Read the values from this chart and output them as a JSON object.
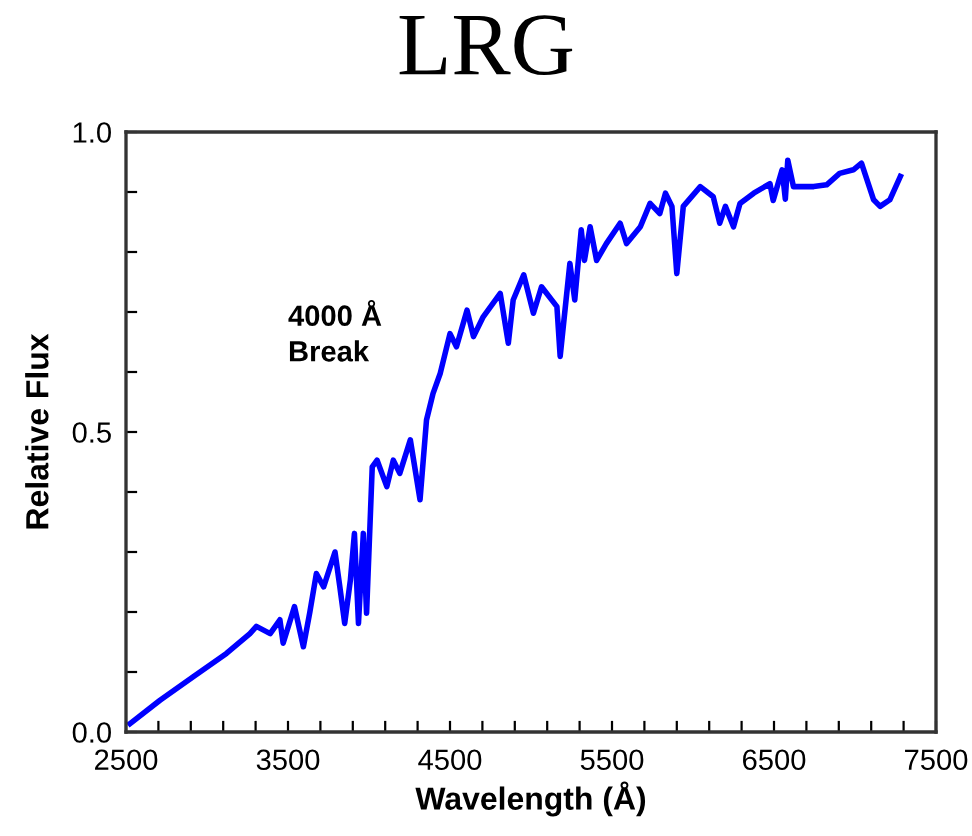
{
  "chart_data": {
    "type": "line",
    "title": "LRG",
    "xlabel": "Wavelength (Å)",
    "ylabel": "Relative Flux",
    "annotations": [
      "4000 Å\nBreak"
    ],
    "series": [
      {
        "color": "#0000ff",
        "x": [
          2525,
          2710,
          2915,
          3120,
          3265,
          3305,
          3390,
          3450,
          3470,
          3540,
          3595,
          3635,
          3675,
          3720,
          3790,
          3820,
          3850,
          3885,
          3910,
          3935,
          3965,
          3985,
          4020,
          4050,
          4110,
          4150,
          4190,
          4255,
          4315,
          4355,
          4395,
          4440,
          4500,
          4540,
          4605,
          4645,
          4705,
          4810,
          4860,
          4890,
          4955,
          5015,
          5065,
          5160,
          5180,
          5240,
          5270,
          5310,
          5330,
          5365,
          5405,
          5465,
          5550,
          5590,
          5675,
          5735,
          5795,
          5830,
          5870,
          5900,
          5940,
          6045,
          6125,
          6165,
          6200,
          6250,
          6290,
          6375,
          6475,
          6495,
          6550,
          6570,
          6585,
          6620,
          6745,
          6825,
          6905,
          6990,
          7040,
          7115,
          7155,
          7215,
          7280
        ],
        "values": [
          0.014,
          0.053,
          0.092,
          0.131,
          0.164,
          0.176,
          0.164,
          0.187,
          0.148,
          0.209,
          0.142,
          0.2,
          0.264,
          0.242,
          0.3,
          0.242,
          0.181,
          0.253,
          0.331,
          0.181,
          0.331,
          0.198,
          0.442,
          0.453,
          0.409,
          0.453,
          0.431,
          0.487,
          0.387,
          0.52,
          0.564,
          0.598,
          0.664,
          0.642,
          0.703,
          0.659,
          0.692,
          0.731,
          0.648,
          0.72,
          0.762,
          0.698,
          0.742,
          0.709,
          0.626,
          0.781,
          0.72,
          0.837,
          0.786,
          0.842,
          0.786,
          0.814,
          0.848,
          0.814,
          0.842,
          0.881,
          0.864,
          0.898,
          0.876,
          0.764,
          0.876,
          0.909,
          0.892,
          0.848,
          0.876,
          0.842,
          0.881,
          0.898,
          0.914,
          0.886,
          0.937,
          0.888,
          0.953,
          0.909,
          0.909,
          0.912,
          0.931,
          0.937,
          0.948,
          0.887,
          0.876,
          0.887,
          0.926
        ]
      }
    ],
    "xlim": [
      2500,
      7500
    ],
    "xticks": [
      2500,
      {
        "value": 2700,
        "label": null
      },
      {
        "value": 2900,
        "label": null
      },
      {
        "value": 3100,
        "label": null
      },
      {
        "value": 3300,
        "label": null
      },
      3500,
      {
        "value": 3700,
        "label": null
      },
      {
        "value": 3900,
        "label": null
      },
      {
        "value": 4100,
        "label": null
      },
      {
        "value": 4300,
        "label": null
      },
      4500,
      {
        "value": 4700,
        "label": null
      },
      {
        "value": 4900,
        "label": null
      },
      {
        "value": 5100,
        "label": null
      },
      {
        "value": 5300,
        "label": null
      },
      5500,
      {
        "value": 5700,
        "label": null
      },
      {
        "value": 5900,
        "label": null
      },
      {
        "value": 6100,
        "label": null
      },
      {
        "value": 6300,
        "label": null
      },
      6500,
      {
        "value": 6700,
        "label": null
      },
      {
        "value": 6900,
        "label": null
      },
      {
        "value": 7100,
        "label": null
      },
      {
        "value": 7300,
        "label": null
      },
      7500
    ],
    "ylim": [
      0,
      1
    ],
    "yticks": [
      {
        "value": 0,
        "label": "0.0"
      },
      {
        "value": 0.1,
        "label": null
      },
      {
        "value": 0.2,
        "label": null
      },
      {
        "value": 0.3,
        "label": null
      },
      {
        "value": 0.4,
        "label": null
      },
      {
        "value": 0.5,
        "label": "0.5"
      },
      {
        "value": 0.6,
        "label": null
      },
      {
        "value": 0.7,
        "label": null
      },
      {
        "value": 0.8,
        "label": null
      },
      {
        "value": 0.9,
        "label": null
      },
      {
        "value": 1.0,
        "label": "1.0"
      }
    ],
    "grid": false,
    "marker": "none",
    "line_style": "solid"
  }
}
